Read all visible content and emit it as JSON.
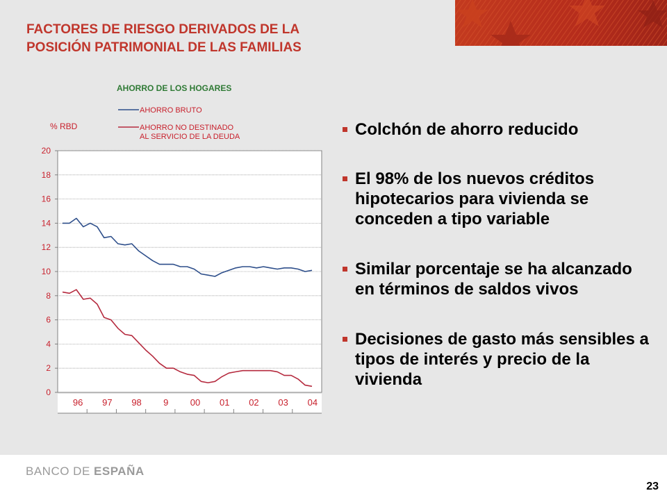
{
  "slide": {
    "title_line1": "FACTORES DE RIESGO DERIVADOS DE  LA",
    "title_line2": "POSICIÓN PATRIMONIAL DE LAS FAMILIAS",
    "page_number": "23",
    "footer_logo_part1": "BANCO DE ",
    "footer_logo_part2": "ESPAÑA"
  },
  "colors": {
    "accent": "#c0362c",
    "series_bruto": "#2d4e8a",
    "series_no_destinado": "#b52a3e",
    "chart_title": "#2f7a35",
    "axis_text": "#c8202c"
  },
  "bullets": [
    "Colchón de ahorro reducido",
    "El 98% de los nuevos créditos hipotecarios para vivienda se conceden a tipo variable",
    "Similar porcentaje se ha alcanzado en términos de saldos vivos",
    "Decisiones de gasto más sensibles a tipos de interés y precio de la vivienda"
  ],
  "chart_data": {
    "type": "line",
    "title": "AHORRO DE LOS HOGARES",
    "ylabel": "% RBD",
    "xlabel": "",
    "ylim": [
      0,
      20
    ],
    "yticks": [
      0,
      2,
      4,
      6,
      8,
      10,
      12,
      14,
      16,
      18,
      20
    ],
    "xlim": [
      0,
      37
    ],
    "xcategories": [
      "96",
      "97",
      "98",
      "9",
      "00",
      "01",
      "02",
      "03",
      "04"
    ],
    "grid": "horizontal",
    "legend_position": "top",
    "series": [
      {
        "name": "AHORRO BRUTO",
        "x": [
          0,
          1,
          2,
          3,
          4,
          5,
          6,
          7,
          8,
          9,
          10,
          11,
          12,
          13,
          14,
          15,
          16,
          17,
          18,
          19,
          20,
          21,
          22,
          23,
          24,
          25,
          26,
          27,
          28,
          29,
          30,
          31,
          32,
          33,
          34,
          35,
          36
        ],
        "values": [
          14.0,
          14.0,
          14.4,
          13.7,
          14.0,
          13.7,
          12.8,
          12.9,
          12.3,
          12.2,
          12.3,
          11.7,
          11.3,
          10.9,
          10.6,
          10.6,
          10.6,
          10.4,
          10.4,
          10.2,
          9.8,
          9.7,
          9.6,
          9.9,
          10.1,
          10.3,
          10.4,
          10.4,
          10.3,
          10.4,
          10.3,
          10.2,
          10.3,
          10.3,
          10.2,
          10.0,
          10.1
        ]
      },
      {
        "name": "AHORRO NO DESTINADO AL SERVICIO DE LA DEUDA",
        "x": [
          0,
          1,
          2,
          3,
          4,
          5,
          6,
          7,
          8,
          9,
          10,
          11,
          12,
          13,
          14,
          15,
          16,
          17,
          18,
          19,
          20,
          21,
          22,
          23,
          24,
          25,
          26,
          27,
          28,
          29,
          30,
          31,
          32,
          33,
          34,
          35,
          36
        ],
        "values": [
          8.3,
          8.2,
          8.5,
          7.7,
          7.8,
          7.3,
          6.2,
          6.0,
          5.3,
          4.8,
          4.7,
          4.1,
          3.5,
          3.0,
          2.4,
          2.0,
          2.0,
          1.7,
          1.5,
          1.4,
          0.9,
          0.8,
          0.9,
          1.3,
          1.6,
          1.7,
          1.8,
          1.8,
          1.8,
          1.8,
          1.8,
          1.7,
          1.4,
          1.4,
          1.1,
          0.6,
          0.5
        ]
      }
    ]
  }
}
